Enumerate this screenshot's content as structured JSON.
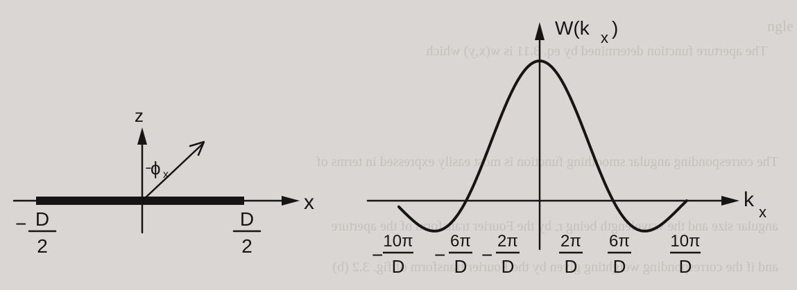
{
  "bleed_text": {
    "lines": [
      "ngle",
      "The aperture function determined by eq. 3.11 is w(x,y) which",
      "The corresponding angular smoothing function is most easily expressed in terms of",
      "angular size and the wavelength being r, by the Fourier transform of the aperture",
      "and if the corresponding weighting given by the Fourier transform of fig. 3.2 (b)"
    ]
  },
  "left_figure": {
    "z_label": "z",
    "x_label": "x",
    "angle_label": "ϕ",
    "left_end": {
      "minus": "−",
      "numerator": "D",
      "denominator": "2"
    },
    "right_end": {
      "numerator": "D",
      "denominator": "2"
    }
  },
  "right_figure": {
    "y_label": "W(k",
    "y_label_sub": "x",
    "y_label_close": ")",
    "x_label": "k",
    "x_label_sub": "x",
    "ticks": [
      {
        "sign": "−",
        "numerator": "10π",
        "denominator": "D"
      },
      {
        "sign": "−",
        "numerator": "6π",
        "denominator": "D"
      },
      {
        "sign": "−",
        "numerator": "2π",
        "denominator": "D"
      },
      {
        "sign": "",
        "numerator": "2π",
        "denominator": "D"
      },
      {
        "sign": "",
        "numerator": "6π",
        "denominator": "D"
      },
      {
        "sign": "",
        "numerator": "10π",
        "denominator": "D"
      }
    ]
  }
}
